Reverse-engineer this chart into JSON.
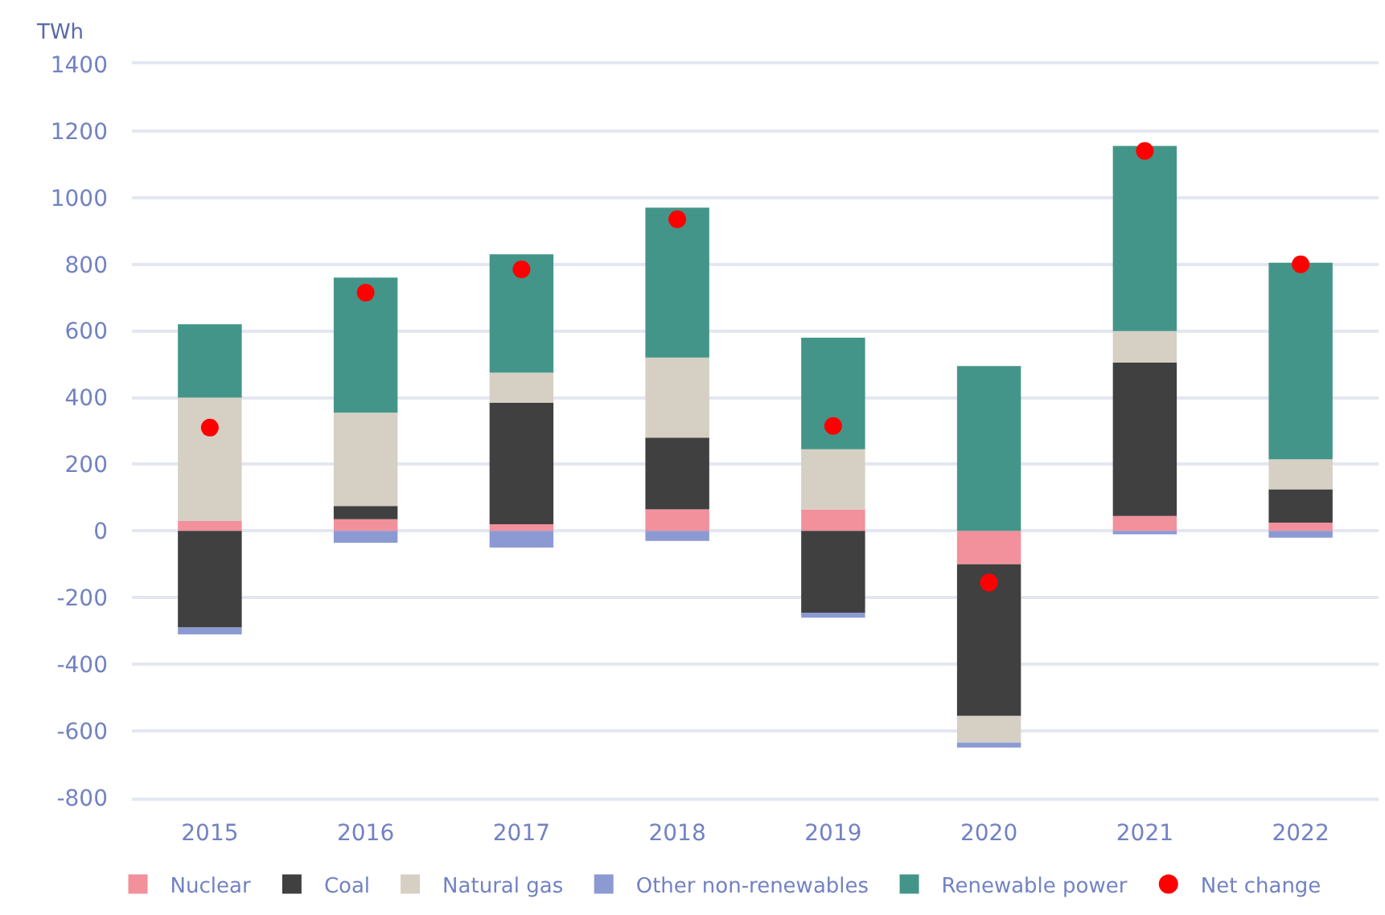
{
  "chart_data": {
    "type": "bar",
    "stacked": true,
    "ylabel": "TWh",
    "categories": [
      "2015",
      "2016",
      "2017",
      "2018",
      "2019",
      "2020",
      "2021",
      "2022"
    ],
    "ylim": [
      -800,
      1400
    ],
    "yticks": [
      -800,
      -600,
      -400,
      -200,
      0,
      200,
      400,
      600,
      800,
      1000,
      1200,
      1400
    ],
    "grid": "y",
    "legend": "bottom",
    "series": [
      {
        "name": "Nuclear",
        "color": "#f2909c",
        "values": [
          30,
          35,
          20,
          65,
          65,
          -100,
          45,
          25
        ]
      },
      {
        "name": "Coal",
        "color": "#404040",
        "values": [
          -290,
          40,
          365,
          215,
          -245,
          -455,
          460,
          100
        ]
      },
      {
        "name": "Natural gas",
        "color": "#d5d0c3",
        "values": [
          370,
          280,
          90,
          240,
          180,
          -80,
          95,
          90
        ]
      },
      {
        "name": "Other non-renewables",
        "color": "#8c9ad3",
        "values": [
          -20,
          -35,
          -50,
          -30,
          -15,
          -15,
          -10,
          -20
        ]
      },
      {
        "name": "Renewable power",
        "color": "#449589",
        "values": [
          220,
          405,
          355,
          450,
          335,
          495,
          555,
          590
        ]
      },
      {
        "name": "Net change",
        "type": "scatter",
        "marker": "circle",
        "color": "#ff0000",
        "values": [
          310,
          715,
          785,
          935,
          315,
          -155,
          1140,
          800
        ]
      }
    ]
  }
}
